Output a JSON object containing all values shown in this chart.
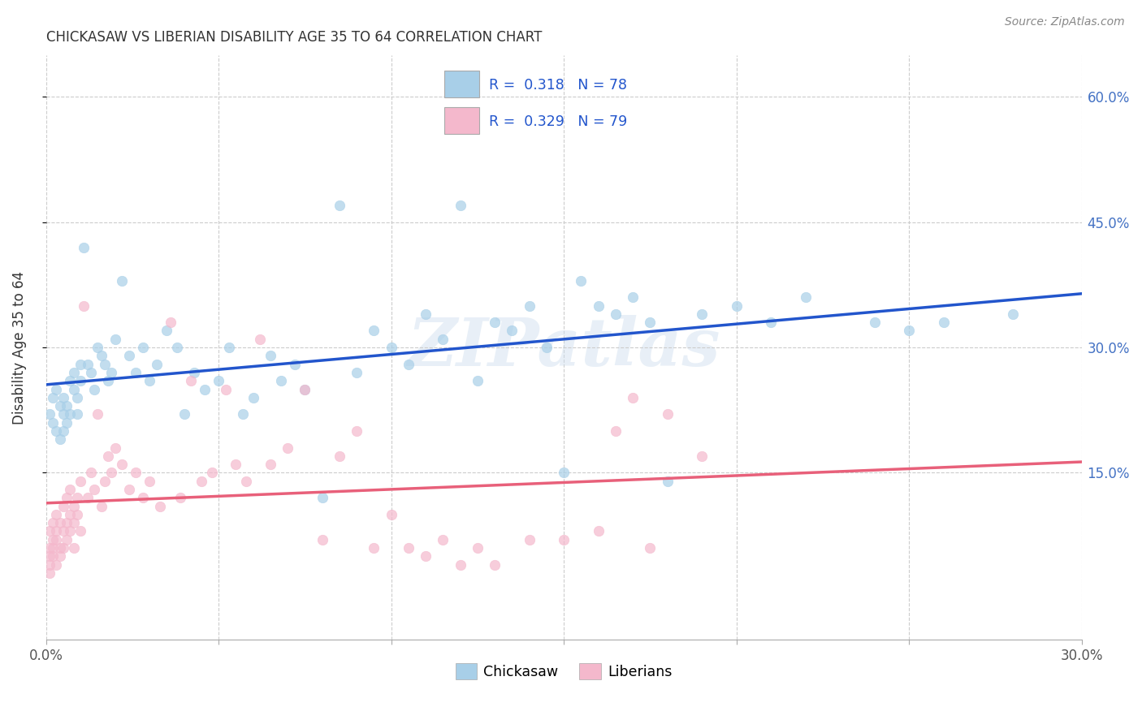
{
  "title": "CHICKASAW VS LIBERIAN DISABILITY AGE 35 TO 64 CORRELATION CHART",
  "source": "Source: ZipAtlas.com",
  "ylabel": "Disability Age 35 to 64",
  "x_min": 0.0,
  "x_max": 0.3,
  "y_min": -0.05,
  "y_max": 0.65,
  "y_ticks_right": [
    0.15,
    0.3,
    0.45,
    0.6
  ],
  "y_tick_labels_right": [
    "15.0%",
    "30.0%",
    "45.0%",
    "60.0%"
  ],
  "chickasaw_R": 0.318,
  "chickasaw_N": 78,
  "liberian_R": 0.329,
  "liberian_N": 79,
  "chickasaw_color": "#a8cfe8",
  "liberian_color": "#f4b8cc",
  "chickasaw_line_color": "#2255cc",
  "liberian_line_color": "#e8607a",
  "liberian_line_dash": "#e8a0b0",
  "legend_label_1": "Chickasaw",
  "legend_label_2": "Liberians",
  "watermark": "ZIPatlas",
  "chickasaw_x": [
    0.001,
    0.002,
    0.002,
    0.003,
    0.003,
    0.004,
    0.004,
    0.005,
    0.005,
    0.005,
    0.006,
    0.006,
    0.007,
    0.007,
    0.008,
    0.008,
    0.009,
    0.009,
    0.01,
    0.01,
    0.011,
    0.012,
    0.013,
    0.014,
    0.015,
    0.016,
    0.017,
    0.018,
    0.019,
    0.02,
    0.022,
    0.024,
    0.026,
    0.028,
    0.03,
    0.032,
    0.035,
    0.038,
    0.04,
    0.043,
    0.046,
    0.05,
    0.053,
    0.057,
    0.06,
    0.065,
    0.068,
    0.072,
    0.075,
    0.08,
    0.085,
    0.09,
    0.095,
    0.1,
    0.105,
    0.11,
    0.115,
    0.12,
    0.125,
    0.13,
    0.135,
    0.14,
    0.145,
    0.15,
    0.155,
    0.16,
    0.165,
    0.17,
    0.175,
    0.18,
    0.19,
    0.2,
    0.21,
    0.22,
    0.24,
    0.25,
    0.26,
    0.28
  ],
  "chickasaw_y": [
    0.22,
    0.24,
    0.21,
    0.25,
    0.2,
    0.23,
    0.19,
    0.22,
    0.24,
    0.2,
    0.23,
    0.21,
    0.26,
    0.22,
    0.25,
    0.27,
    0.24,
    0.22,
    0.26,
    0.28,
    0.42,
    0.28,
    0.27,
    0.25,
    0.3,
    0.29,
    0.28,
    0.26,
    0.27,
    0.31,
    0.38,
    0.29,
    0.27,
    0.3,
    0.26,
    0.28,
    0.32,
    0.3,
    0.22,
    0.27,
    0.25,
    0.26,
    0.3,
    0.22,
    0.24,
    0.29,
    0.26,
    0.28,
    0.25,
    0.12,
    0.47,
    0.27,
    0.32,
    0.3,
    0.28,
    0.34,
    0.31,
    0.47,
    0.26,
    0.33,
    0.32,
    0.35,
    0.3,
    0.15,
    0.38,
    0.35,
    0.34,
    0.36,
    0.33,
    0.14,
    0.34,
    0.35,
    0.33,
    0.36,
    0.33,
    0.32,
    0.33,
    0.34
  ],
  "liberian_x": [
    0.001,
    0.001,
    0.001,
    0.001,
    0.001,
    0.002,
    0.002,
    0.002,
    0.002,
    0.003,
    0.003,
    0.003,
    0.003,
    0.004,
    0.004,
    0.004,
    0.005,
    0.005,
    0.005,
    0.006,
    0.006,
    0.006,
    0.007,
    0.007,
    0.007,
    0.008,
    0.008,
    0.008,
    0.009,
    0.009,
    0.01,
    0.01,
    0.011,
    0.012,
    0.013,
    0.014,
    0.015,
    0.016,
    0.017,
    0.018,
    0.019,
    0.02,
    0.022,
    0.024,
    0.026,
    0.028,
    0.03,
    0.033,
    0.036,
    0.039,
    0.042,
    0.045,
    0.048,
    0.052,
    0.055,
    0.058,
    0.062,
    0.065,
    0.07,
    0.075,
    0.08,
    0.085,
    0.09,
    0.095,
    0.1,
    0.105,
    0.11,
    0.115,
    0.12,
    0.125,
    0.13,
    0.14,
    0.15,
    0.16,
    0.165,
    0.17,
    0.175,
    0.18,
    0.19
  ],
  "liberian_y": [
    0.04,
    0.06,
    0.08,
    0.05,
    0.03,
    0.07,
    0.05,
    0.09,
    0.06,
    0.1,
    0.07,
    0.04,
    0.08,
    0.06,
    0.09,
    0.05,
    0.11,
    0.08,
    0.06,
    0.12,
    0.09,
    0.07,
    0.1,
    0.13,
    0.08,
    0.11,
    0.09,
    0.06,
    0.12,
    0.1,
    0.14,
    0.08,
    0.35,
    0.12,
    0.15,
    0.13,
    0.22,
    0.11,
    0.14,
    0.17,
    0.15,
    0.18,
    0.16,
    0.13,
    0.15,
    0.12,
    0.14,
    0.11,
    0.33,
    0.12,
    0.26,
    0.14,
    0.15,
    0.25,
    0.16,
    0.14,
    0.31,
    0.16,
    0.18,
    0.25,
    0.07,
    0.17,
    0.2,
    0.06,
    0.1,
    0.06,
    0.05,
    0.07,
    0.04,
    0.06,
    0.04,
    0.07,
    0.07,
    0.08,
    0.2,
    0.24,
    0.06,
    0.22,
    0.17
  ]
}
